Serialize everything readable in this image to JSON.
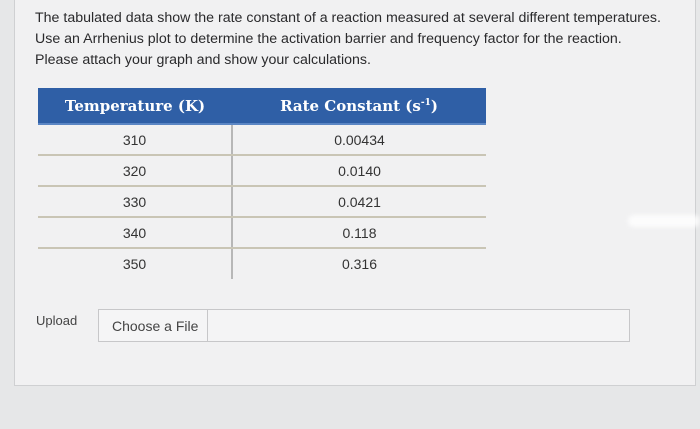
{
  "question": {
    "line1": "The tabulated data show the rate constant of a reaction measured at several different temperatures.",
    "line2": "Use an Arrhenius plot to determine the activation barrier and frequency factor for the reaction.",
    "line3": "Please attach your graph and show your calculations."
  },
  "table": {
    "headers": {
      "temperature": "Temperature (K)",
      "rate_base": "Rate Constant (s",
      "rate_exp": "-1",
      "rate_close": ")"
    },
    "rows": [
      {
        "temperature": "310",
        "rate": "0.00434"
      },
      {
        "temperature": "320",
        "rate": "0.0140"
      },
      {
        "temperature": "330",
        "rate": "0.0421"
      },
      {
        "temperature": "340",
        "rate": "0.118"
      },
      {
        "temperature": "350",
        "rate": "0.316"
      }
    ]
  },
  "upload": {
    "label": "Upload",
    "button_label": "Choose a File"
  },
  "colors": {
    "header_bg": "#2f5fa6",
    "panel_bg": "#f1f1f2"
  }
}
